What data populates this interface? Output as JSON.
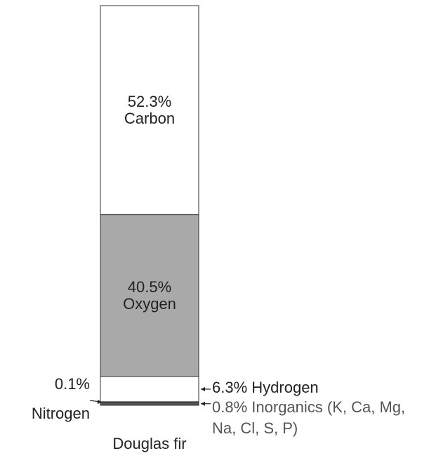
{
  "chart_data": {
    "type": "stacked_bar",
    "categories": [
      "Douglas fir"
    ],
    "series": [
      {
        "name": "Inorganics (K, Ca, Mg, Na, Cl, S, P)",
        "color": "#555555",
        "values": [
          0.8
        ],
        "value_labels": [
          "0.8%"
        ]
      },
      {
        "name": "Nitrogen",
        "color": "#999999",
        "values": [
          0.1
        ],
        "value_labels": [
          "0.1%"
        ]
      },
      {
        "name": "Hydrogen",
        "color": "#ffffff",
        "values": [
          6.3
        ],
        "value_labels": [
          "6.3%"
        ]
      },
      {
        "name": "Oxygen",
        "color": "#a9a9a9",
        "values": [
          40.5
        ],
        "value_labels": [
          "40.5%"
        ]
      },
      {
        "name": "Carbon",
        "color": "#ffffff",
        "values": [
          52.3
        ],
        "value_labels": [
          "52.3%"
        ]
      }
    ]
  }
}
